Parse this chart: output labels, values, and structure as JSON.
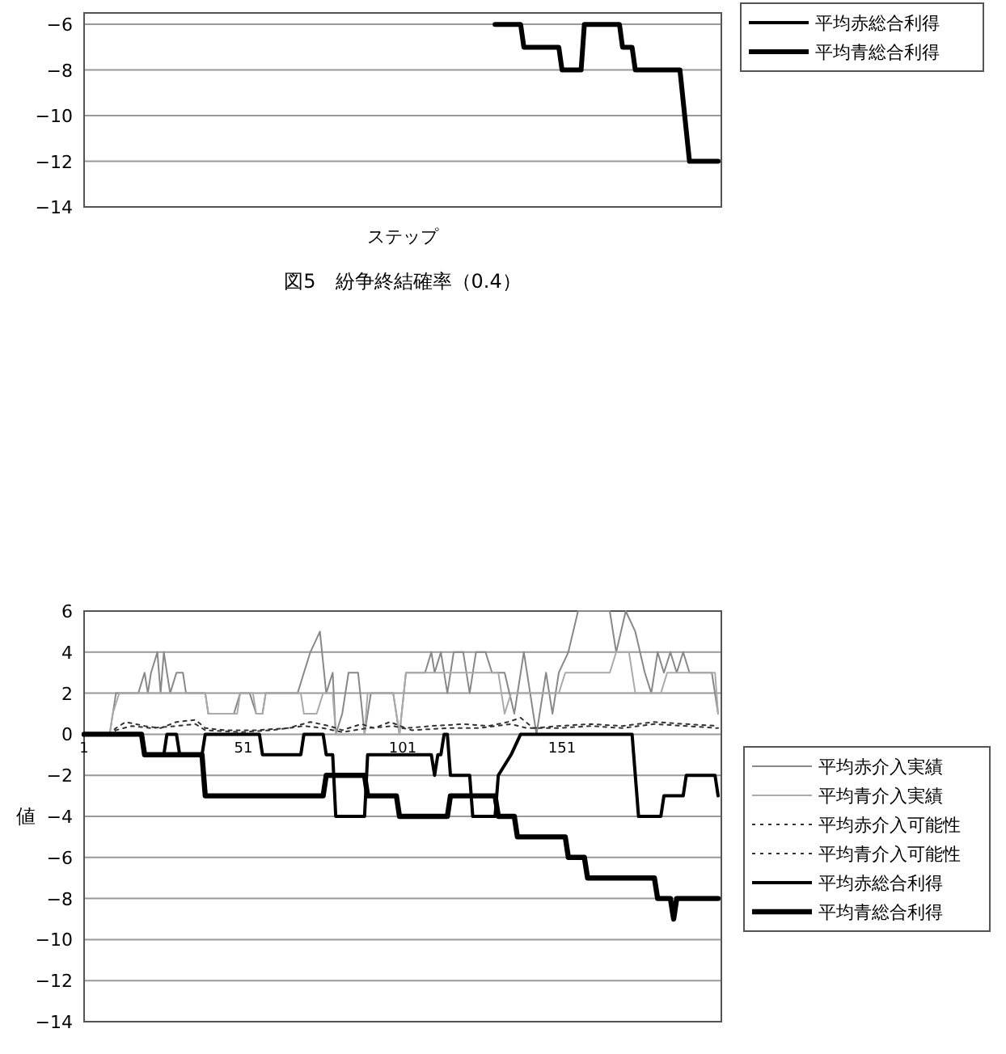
{
  "chart_data": [
    {
      "type": "line",
      "title": "図5　紛争終結確率（0.4）",
      "xlabel": "ステップ",
      "xlim": [
        1,
        201
      ],
      "ylim": [
        -14,
        -5.5
      ],
      "yticks": [
        -6,
        -8,
        -10,
        -12,
        -14
      ],
      "tick_labels": "y",
      "grid": "y",
      "legend": "top right",
      "series": [
        {
          "name": "平均赤総合利得",
          "color": "#000000"
        },
        {
          "name": "平均青総合利得",
          "color": "#000000",
          "x": [
            130,
            138,
            139,
            150,
            151,
            157,
            158,
            169,
            170,
            173,
            174,
            188,
            191,
            200
          ],
          "values": [
            -6,
            -6,
            -7,
            -7,
            -8,
            -8,
            -6,
            -6,
            -7,
            -7,
            -8,
            -8,
            -12,
            -12
          ]
        }
      ]
    },
    {
      "type": "line",
      "ylabel": "値",
      "xlim": [
        1,
        201
      ],
      "xticks": [
        1,
        51,
        101,
        151
      ],
      "ylim": [
        -14,
        6
      ],
      "yticks": [
        6,
        4,
        2,
        0,
        -2,
        -4,
        -6,
        -8,
        -10,
        -12,
        -14
      ],
      "grid": "y",
      "legend": "right",
      "series": [
        {
          "name": "平均赤介入実績",
          "color": "#888888",
          "x": [
            1,
            9,
            11,
            18,
            20,
            21,
            22,
            24,
            25,
            26,
            27,
            28,
            30,
            32,
            33,
            39,
            40,
            48,
            50,
            53,
            55,
            57,
            58,
            68,
            70,
            72,
            75,
            77,
            79,
            80,
            82,
            84,
            87,
            89,
            91,
            98,
            100,
            102,
            108,
            110,
            111,
            113,
            115,
            117,
            120,
            122,
            124,
            127,
            129,
            133,
            136,
            139,
            141,
            143,
            146,
            148,
            150,
            153,
            156,
            166,
            168,
            171,
            174,
            177,
            179,
            181,
            183,
            185,
            187,
            189,
            191,
            198,
            200
          ],
          "values": [
            0,
            0,
            2,
            2,
            3,
            2,
            3,
            4,
            2,
            4,
            3,
            2,
            3,
            3,
            2,
            2,
            1,
            1,
            2,
            2,
            1,
            1,
            2,
            2,
            3,
            4,
            5,
            2,
            3,
            0,
            1,
            3,
            3,
            0,
            2,
            2,
            0,
            3,
            3,
            4,
            3,
            4,
            2,
            4,
            4,
            2,
            4,
            4,
            3,
            3,
            1,
            4,
            2,
            0,
            3,
            1,
            3,
            4,
            6,
            6,
            4,
            6,
            5,
            3,
            2,
            4,
            3,
            4,
            3,
            4,
            3,
            3,
            1
          ]
        },
        {
          "name": "平均青介入実績",
          "color": "#aaaaaa",
          "x": [
            1,
            9,
            10,
            12,
            39,
            40,
            49,
            50,
            54,
            55,
            57,
            58,
            69,
            70,
            74,
            76,
            79,
            80,
            89,
            90,
            98,
            100,
            102,
            131,
            133,
            135,
            150,
            152,
            166,
            168,
            172,
            174,
            182,
            184,
            199,
            200
          ],
          "values": [
            0,
            0,
            1,
            2,
            2,
            1,
            1,
            2,
            2,
            1,
            1,
            2,
            2,
            1,
            1,
            2,
            2,
            0,
            0,
            2,
            2,
            0,
            3,
            3,
            1,
            2,
            2,
            3,
            3,
            4,
            4,
            2,
            2,
            3,
            3,
            1
          ]
        },
        {
          "name": "平均赤介入可能性",
          "color": "#333333",
          "line_style": "dotted",
          "x": [
            1,
            9,
            11,
            14,
            20,
            25,
            30,
            36,
            39,
            45,
            55,
            65,
            72,
            78,
            82,
            88,
            92,
            97,
            102,
            110,
            120,
            128,
            134,
            138,
            142,
            150,
            160,
            170,
            180,
            190,
            200
          ],
          "values": [
            0,
            0,
            0.3,
            0.6,
            0.4,
            0.3,
            0.6,
            0.7,
            0.3,
            0.2,
            0.2,
            0.3,
            0.6,
            0.4,
            0.2,
            0.5,
            0.3,
            0.6,
            0.3,
            0.4,
            0.5,
            0.4,
            0.6,
            0.8,
            0.3,
            0.4,
            0.5,
            0.4,
            0.6,
            0.5,
            0.4
          ]
        },
        {
          "name": "平均青介入可能性",
          "color": "#333333",
          "line_style": "dotted",
          "x": [
            1,
            9,
            11,
            16,
            22,
            30,
            36,
            39,
            50,
            60,
            70,
            76,
            82,
            90,
            98,
            104,
            115,
            125,
            135,
            140,
            150,
            160,
            170,
            180,
            190,
            200
          ],
          "values": [
            0,
            0,
            0.2,
            0.4,
            0.3,
            0.4,
            0.5,
            0.2,
            0.1,
            0.2,
            0.4,
            0.3,
            0.1,
            0.3,
            0.4,
            0.2,
            0.3,
            0.3,
            0.5,
            0.3,
            0.3,
            0.4,
            0.3,
            0.5,
            0.4,
            0.3
          ]
        },
        {
          "name": "平均赤総合利得",
          "color": "#000000",
          "x": [
            1,
            19,
            20,
            26,
            27,
            30,
            31,
            38,
            39,
            56,
            57,
            69,
            70,
            76,
            77,
            79,
            80,
            89,
            90,
            110,
            111,
            112,
            113,
            114,
            115,
            116,
            122,
            123,
            130,
            131,
            135,
            138,
            173,
            175,
            182,
            183,
            189,
            190,
            199,
            200
          ],
          "values": [
            0,
            0,
            -1,
            -1,
            0,
            0,
            -1,
            -1,
            0,
            0,
            -1,
            -1,
            0,
            0,
            -1,
            -1,
            -4,
            -4,
            -1,
            -1,
            -2,
            -1,
            -1,
            0,
            0,
            -2,
            -2,
            -4,
            -4,
            -2,
            -1,
            0,
            0,
            -4,
            -4,
            -3,
            -3,
            -2,
            -2,
            -3
          ]
        },
        {
          "name": "平均青総合利得",
          "color": "#000000",
          "x": [
            1,
            19,
            20,
            38,
            39,
            76,
            77,
            89,
            90,
            99,
            100,
            115,
            116,
            130,
            131,
            136,
            137,
            152,
            153,
            158,
            159,
            180,
            181,
            185,
            186,
            187,
            200
          ],
          "values": [
            0,
            0,
            -1,
            -1,
            -3,
            -3,
            -2,
            -2,
            -3,
            -3,
            -4,
            -4,
            -3,
            -3,
            -4,
            -4,
            -5,
            -5,
            -6,
            -6,
            -7,
            -7,
            -8,
            -8,
            -9,
            -8,
            -8
          ]
        }
      ]
    }
  ]
}
